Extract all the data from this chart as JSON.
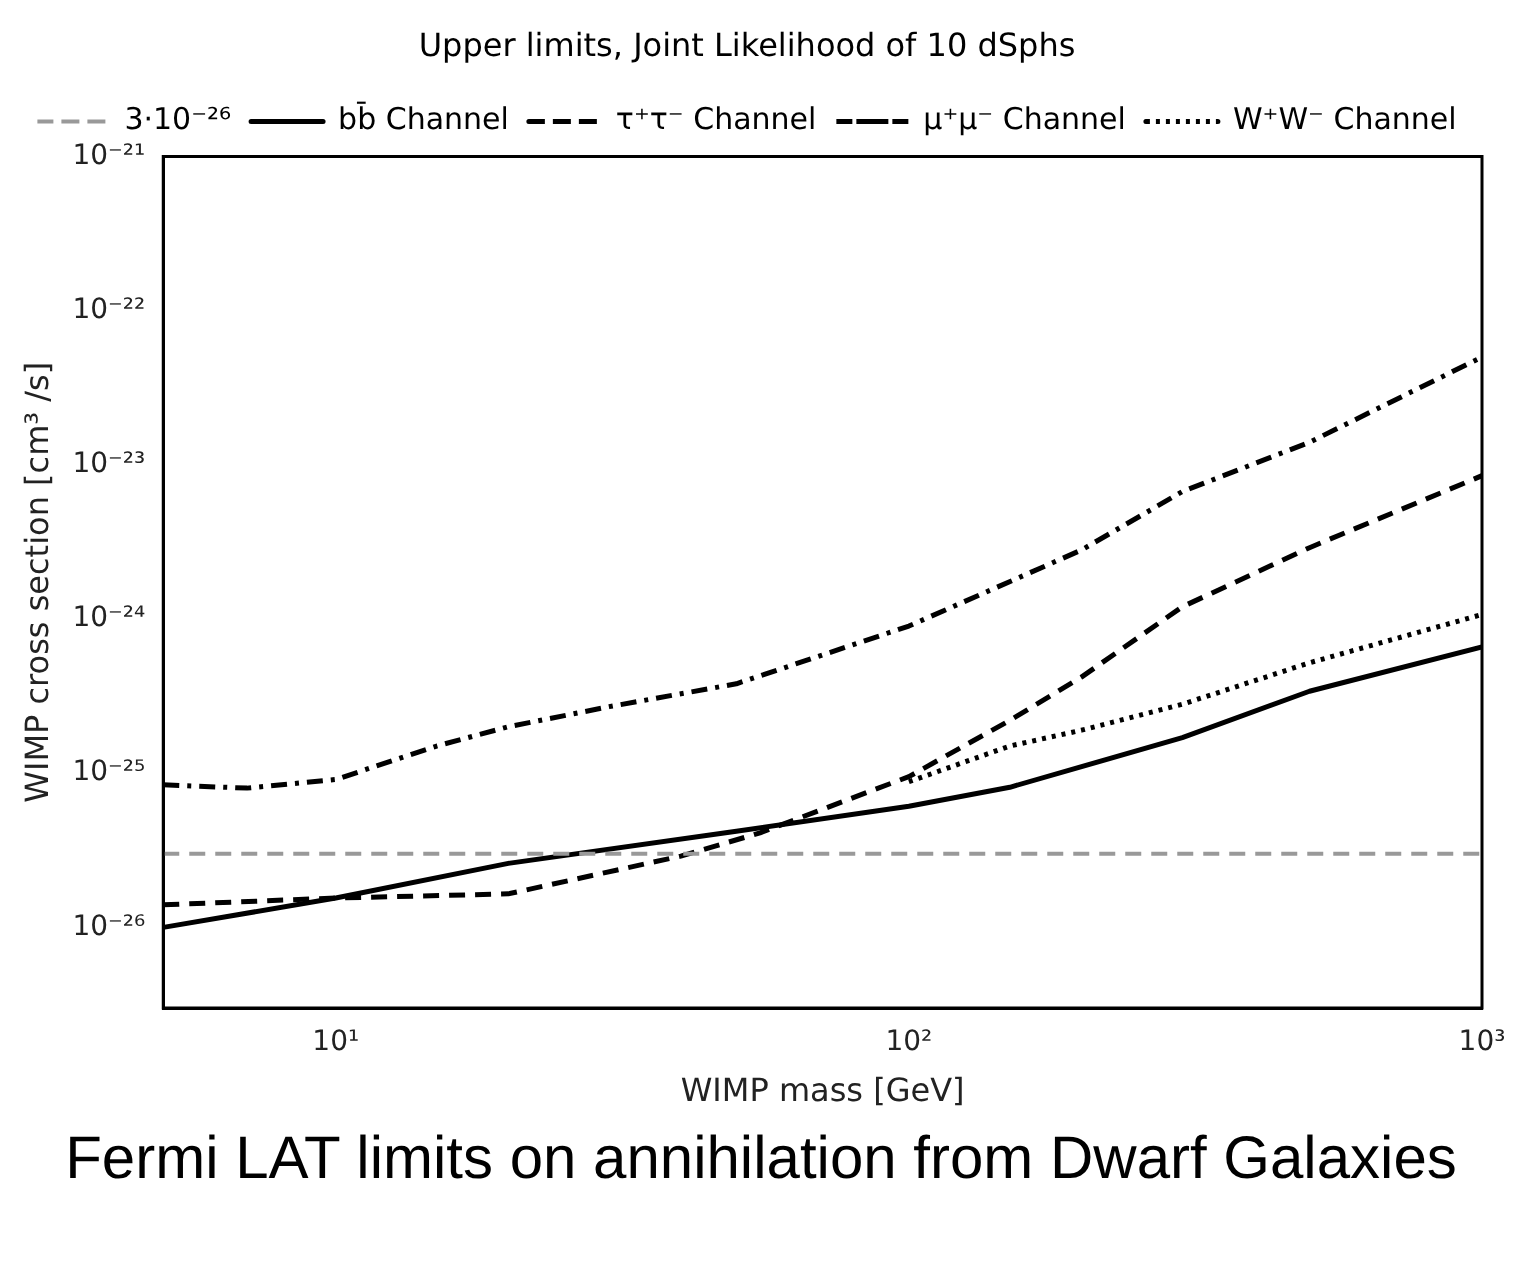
{
  "chart_data": {
    "type": "line",
    "title": "Upper limits, Joint Likelihood of 10 dSphs",
    "xlabel": "WIMP mass [GeV]",
    "ylabel": "WIMP cross section [cm³ /s]",
    "annotations": [
      "Fermi LAT limits on annihilation from Dwarf Galaxies"
    ],
    "log": "xy",
    "grid": false,
    "legend": "top",
    "marker": "none",
    "xlim": [
      5,
      1000
    ],
    "ylim": [
      3e-27,
      1e-21
    ],
    "xticks": [
      {
        "value": 10,
        "label": "10¹"
      },
      {
        "value": 100,
        "label": "10²"
      },
      {
        "value": 1000,
        "label": "10³"
      }
    ],
    "yticks": [
      {
        "value": 1e-26,
        "label": "10⁻²⁶"
      },
      {
        "value": 1e-25,
        "label": "10⁻²⁵"
      },
      {
        "value": 1e-24,
        "label": "10⁻²⁴"
      },
      {
        "value": 1e-23,
        "label": "10⁻²³"
      },
      {
        "value": 1e-22,
        "label": "10⁻²²"
      },
      {
        "value": 1e-21,
        "label": "10⁻²¹"
      }
    ],
    "ref_lines": [
      {
        "axis": "y",
        "value": 3e-26,
        "label": "3·10⁻²⁶",
        "color": "#999999",
        "line_style": "dashed"
      }
    ],
    "series": [
      {
        "name": "bb̄ Channel",
        "color": "#000000",
        "line_style": "solid",
        "x": [
          5,
          10,
          20,
          50,
          100,
          150,
          300,
          500,
          1000
        ],
        "values": [
          1e-26,
          1.55e-26,
          2.6e-26,
          4.2e-26,
          6.1e-26,
          8.1e-26,
          1.7e-25,
          3.4e-25,
          6.6e-25
        ]
      },
      {
        "name": "τ⁺τ⁻ Channel",
        "color": "#000000",
        "line_style": "dashed",
        "x": [
          5,
          10,
          20,
          40,
          55,
          100,
          150,
          200,
          300,
          500,
          1000
        ],
        "values": [
          1.4e-26,
          1.55e-26,
          1.65e-26,
          2.9e-26,
          4.1e-26,
          9.5e-26,
          2.2e-25,
          4.2e-25,
          1.2e-24,
          2.9e-24,
          8.5e-24
        ]
      },
      {
        "name": "μ⁺μ⁻ Channel",
        "color": "#000000",
        "line_style": "dashdot",
        "x": [
          5,
          7,
          10,
          15,
          20,
          30,
          50,
          100,
          200,
          300,
          500,
          1000
        ],
        "values": [
          8.4e-26,
          8e-26,
          9.1e-26,
          1.5e-25,
          2e-25,
          2.7e-25,
          3.8e-25,
          9e-25,
          2.8e-24,
          6.7e-24,
          1.4e-23,
          5e-23
        ]
      },
      {
        "name": "W⁺W⁻ Channel",
        "color": "#000000",
        "line_style": "dotted",
        "x": [
          100,
          150,
          200,
          300,
          500,
          1000
        ],
        "values": [
          8.8e-26,
          1.5e-25,
          1.9e-25,
          2.8e-25,
          5.2e-25,
          1.07e-24
        ]
      }
    ]
  }
}
